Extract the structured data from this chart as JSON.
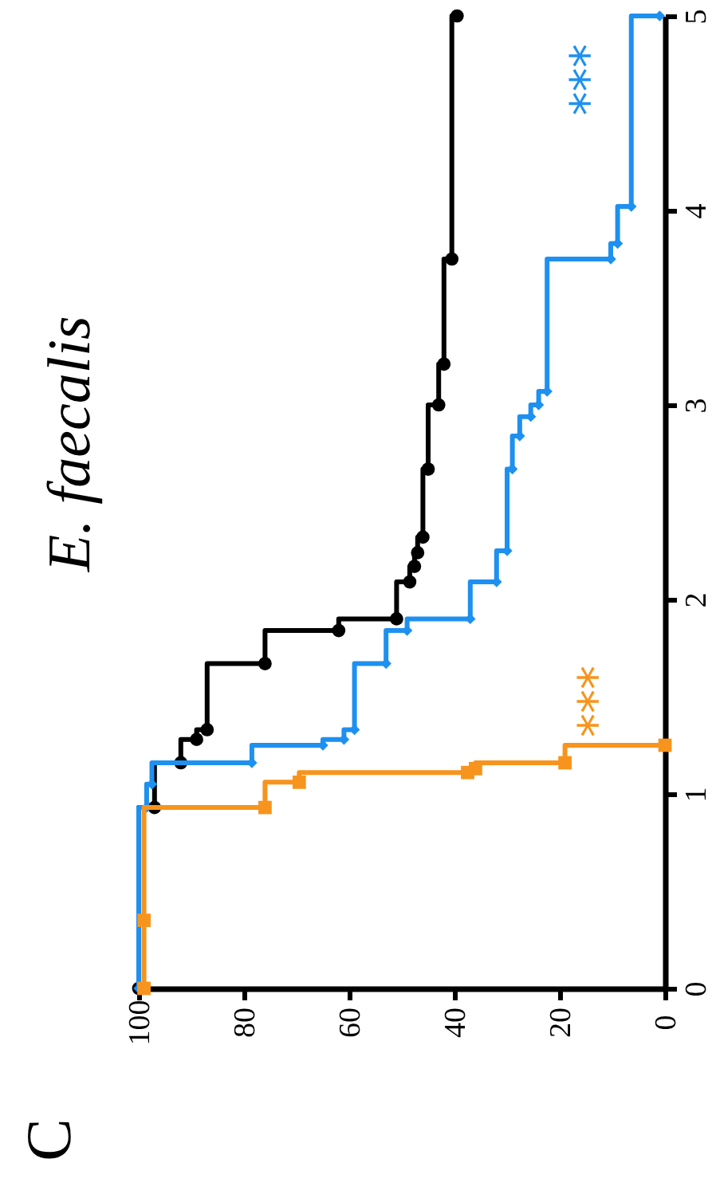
{
  "chart_data": {
    "type": "step",
    "orientation": "horizontal",
    "title": "E. faecalis",
    "xlim": [
      100,
      0
    ],
    "xticks": [
      100,
      80,
      60,
      40,
      20,
      0
    ],
    "ylim": [
      0,
      5
    ],
    "yticks": [
      0,
      1,
      2,
      3,
      4,
      5
    ],
    "grid": false,
    "series": [
      {
        "color": "#000000",
        "marker": "circle",
        "x": [
          0,
          0.93,
          1.16,
          1.28,
          1.33,
          1.67,
          1.84,
          1.9,
          2.09,
          2.17,
          2.24,
          2.32,
          2.67,
          3.0,
          3.21,
          3.75,
          5.0
        ],
        "values": [
          100,
          97,
          92,
          89,
          87,
          76,
          62,
          51,
          48.5,
          47.6,
          47,
          46,
          45,
          43,
          42,
          40.5,
          39.5
        ]
      },
      {
        "color": "#1e90f0",
        "marker": "diamond",
        "x": [
          0,
          0.93,
          1.05,
          1.16,
          1.25,
          1.28,
          1.33,
          1.67,
          1.84,
          1.9,
          2.09,
          2.25,
          2.67,
          2.84,
          2.94,
          3.0,
          3.07,
          3.75,
          3.83,
          4.02,
          5.0
        ],
        "values": [
          100,
          98.5,
          97.5,
          78.5,
          65,
          61,
          59,
          53,
          49,
          37,
          32,
          30,
          29,
          27.6,
          25.5,
          24,
          22.4,
          10.3,
          9,
          6.4,
          1
        ]
      },
      {
        "color": "#f7941d",
        "marker": "square",
        "x": [
          0,
          0.35,
          0.93,
          1.06,
          1.11,
          1.13,
          1.16,
          1.25
        ],
        "values": [
          99,
          99,
          76,
          69.5,
          37.5,
          36,
          19,
          0
        ]
      }
    ],
    "annotations": [
      "C",
      "***",
      "***"
    ]
  }
}
